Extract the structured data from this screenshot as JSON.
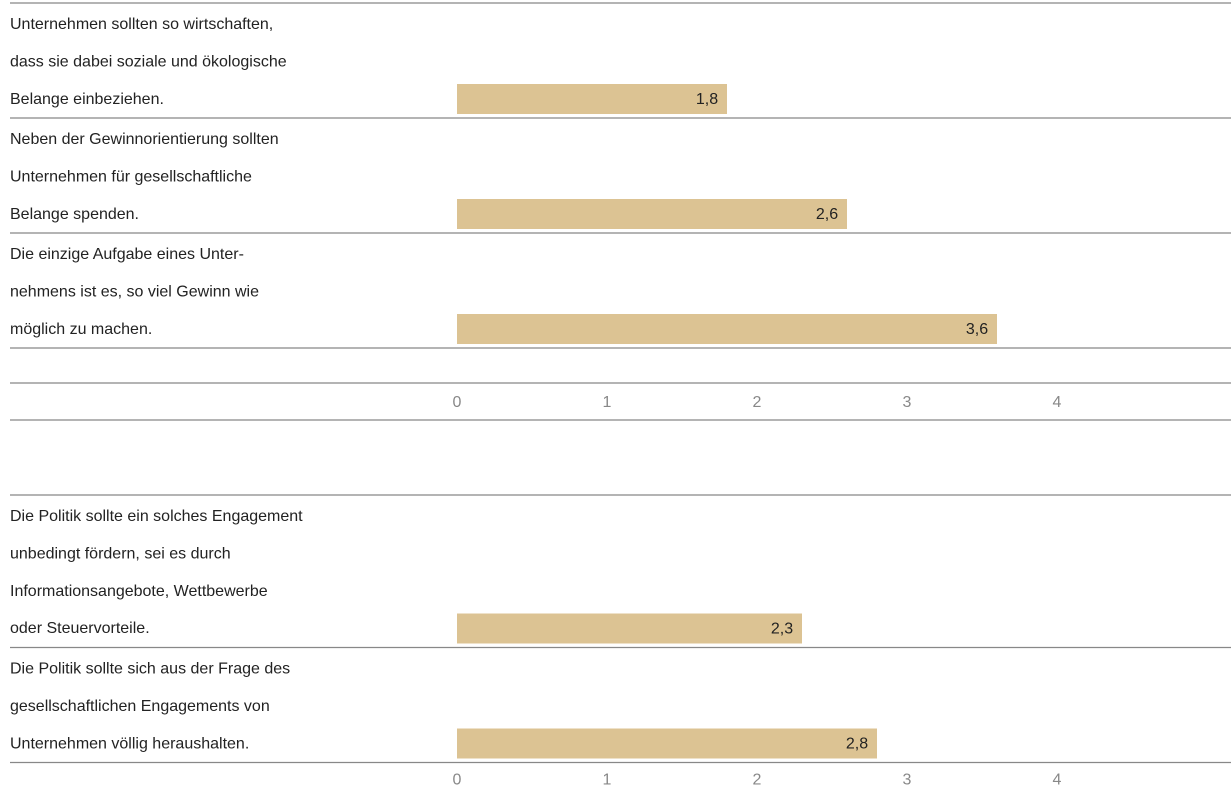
{
  "chart_data": [
    {
      "type": "bar",
      "orientation": "horizontal",
      "categories": [
        [
          "Unternehmen sollten so wirtschaften,",
          "dass sie dabei soziale und ökologische",
          "Belange einbeziehen."
        ],
        [
          "Neben der Gewinnorientierung sollten",
          "Unternehmen für gesellschaftliche",
          "Belange spenden."
        ],
        [
          "Die einzige Aufgabe eines Unter-",
          "nehmens ist es, so viel Gewinn wie",
          "möglich zu machen."
        ]
      ],
      "values": [
        1.8,
        2.6,
        3.6
      ],
      "value_labels": [
        "1,8",
        "2,6",
        "3,6"
      ],
      "color": "#dcc393",
      "xlim": [
        0,
        4
      ],
      "xticks": [
        0,
        1,
        2,
        3,
        4
      ]
    },
    {
      "type": "bar",
      "orientation": "horizontal",
      "categories": [
        [
          "Die Politik sollte ein solches Engagement",
          "unbedingt fördern, sei es durch",
          "Informationsangebote, Wettbewerbe",
          "oder Steuervorteile."
        ],
        [
          "Die Politik sollte sich aus der Frage des",
          "gesellschaftlichen Engagements von",
          "Unternehmen völlig heraushalten."
        ]
      ],
      "values": [
        2.3,
        2.8
      ],
      "value_labels": [
        "2,3",
        "2,8"
      ],
      "color": "#dcc393",
      "xlim": [
        0,
        4
      ],
      "xticks": [
        0,
        1,
        2,
        3,
        4
      ]
    }
  ]
}
